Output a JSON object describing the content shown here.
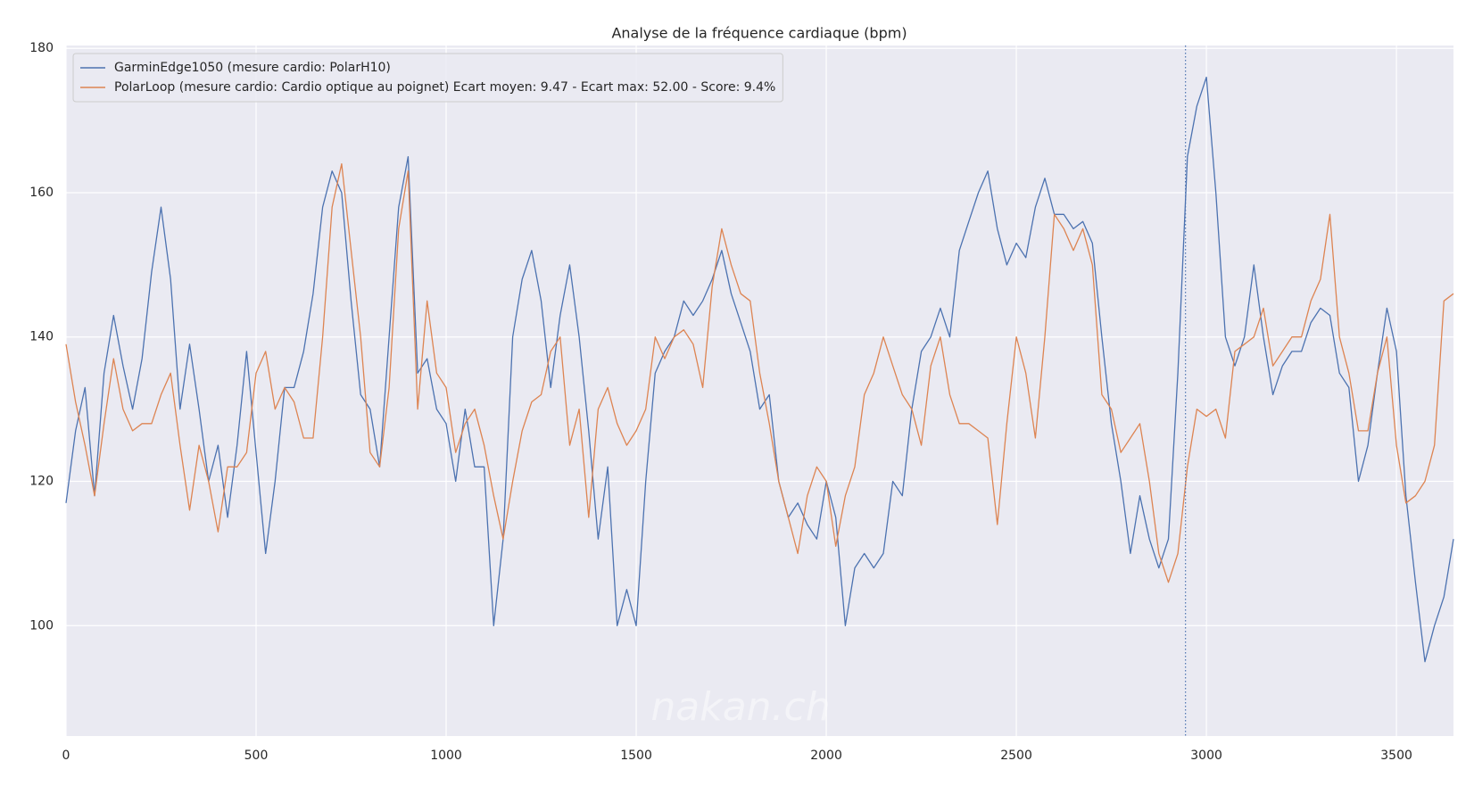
{
  "chart_data": {
    "type": "line",
    "title": "Analyse de la fréquence cardiaque (bpm)",
    "x": [
      0,
      25,
      50,
      75,
      100,
      125,
      150,
      175,
      200,
      225,
      250,
      275,
      300,
      325,
      350,
      375,
      400,
      425,
      450,
      475,
      500,
      525,
      550,
      575,
      600,
      625,
      650,
      675,
      700,
      725,
      750,
      775,
      800,
      825,
      850,
      875,
      900,
      925,
      950,
      975,
      1000,
      1025,
      1050,
      1075,
      1100,
      1125,
      1150,
      1175,
      1200,
      1225,
      1250,
      1275,
      1300,
      1325,
      1350,
      1375,
      1400,
      1425,
      1450,
      1475,
      1500,
      1525,
      1550,
      1575,
      1600,
      1625,
      1650,
      1675,
      1700,
      1725,
      1750,
      1775,
      1800,
      1825,
      1850,
      1875,
      1900,
      1925,
      1950,
      1975,
      2000,
      2025,
      2050,
      2075,
      2100,
      2125,
      2150,
      2175,
      2200,
      2225,
      2250,
      2275,
      2300,
      2325,
      2350,
      2375,
      2400,
      2425,
      2450,
      2475,
      2500,
      2525,
      2550,
      2575,
      2600,
      2625,
      2650,
      2675,
      2700,
      2725,
      2750,
      2775,
      2800,
      2825,
      2850,
      2875,
      2900,
      2925,
      2950,
      2975,
      3000,
      3025,
      3050,
      3075,
      3100,
      3125,
      3150,
      3175,
      3200,
      3225,
      3250,
      3275,
      3300,
      3325,
      3350,
      3375,
      3400,
      3425,
      3450,
      3475,
      3500,
      3525,
      3550,
      3575,
      3600,
      3625,
      3650
    ],
    "series": [
      {
        "name": "GarminEdge1050 (mesure cardio: PolarH10)",
        "color": "#4c72b0",
        "values": [
          117,
          127,
          133,
          118,
          135,
          143,
          136,
          130,
          137,
          149,
          158,
          148,
          130,
          139,
          130,
          120,
          125,
          115,
          125,
          138,
          124,
          110,
          120,
          133,
          133,
          138,
          146,
          158,
          163,
          160,
          145,
          132,
          130,
          122,
          140,
          158,
          165,
          135,
          137,
          130,
          128,
          120,
          130,
          122,
          122,
          100,
          112,
          140,
          148,
          152,
          145,
          133,
          143,
          150,
          140,
          127,
          112,
          122,
          100,
          105,
          100,
          120,
          135,
          138,
          140,
          145,
          143,
          145,
          148,
          152,
          146,
          142,
          138,
          130,
          132,
          120,
          115,
          117,
          114,
          112,
          120,
          115,
          100,
          108,
          110,
          108,
          110,
          120,
          118,
          130,
          138,
          140,
          144,
          140,
          152,
          156,
          160,
          163,
          155,
          150,
          153,
          151,
          158,
          162,
          157,
          157,
          155,
          156,
          153,
          140,
          128,
          120,
          110,
          118,
          112,
          108,
          112,
          135,
          165,
          172,
          176,
          160,
          140,
          136,
          140,
          150,
          140,
          132,
          136,
          138,
          138,
          142,
          144,
          143,
          135,
          133,
          120,
          125,
          135,
          144,
          138,
          118,
          106,
          95,
          100,
          104,
          112
        ]
      },
      {
        "name": "PolarLoop (mesure cardio: Cardio optique au poignet) Ecart moyen: 9.47 - Ecart max: 52.00 - Score: 9.4%",
        "color": "#dd8452",
        "values": [
          139,
          131,
          125,
          118,
          128,
          137,
          130,
          127,
          128,
          128,
          132,
          135,
          125,
          116,
          125,
          120,
          113,
          122,
          122,
          124,
          135,
          138,
          130,
          133,
          131,
          126,
          126,
          140,
          158,
          164,
          152,
          140,
          124,
          122,
          133,
          155,
          163,
          130,
          145,
          135,
          133,
          124,
          128,
          130,
          125,
          118,
          112,
          120,
          127,
          131,
          132,
          138,
          140,
          125,
          130,
          115,
          130,
          133,
          128,
          125,
          127,
          130,
          140,
          137,
          140,
          141,
          139,
          133,
          147,
          155,
          150,
          146,
          145,
          135,
          128,
          120,
          115,
          110,
          118,
          122,
          120,
          111,
          118,
          122,
          132,
          135,
          140,
          136,
          132,
          130,
          125,
          136,
          140,
          132,
          128,
          128,
          127,
          126,
          114,
          128,
          140,
          135,
          126,
          140,
          157,
          155,
          152,
          155,
          150,
          132,
          130,
          124,
          126,
          128,
          120,
          110,
          106,
          110,
          122,
          130,
          129,
          130,
          126,
          138,
          139,
          140,
          144,
          136,
          138,
          140,
          140,
          145,
          148,
          157,
          140,
          135,
          127,
          127,
          135,
          140,
          125,
          117,
          118,
          120,
          125,
          145,
          146
        ]
      }
    ],
    "xlim": [
      0,
      3650
    ],
    "ylim": [
      84.7,
      180.4
    ],
    "xticks": [
      0,
      500,
      1000,
      1500,
      2000,
      2500,
      3000,
      3500
    ],
    "yticks": [
      100,
      120,
      140,
      160,
      180
    ],
    "vline_x": 2945,
    "vline_color": "#4c72b0",
    "grid": true,
    "legend": "upper left",
    "watermark": "nakan.ch"
  }
}
